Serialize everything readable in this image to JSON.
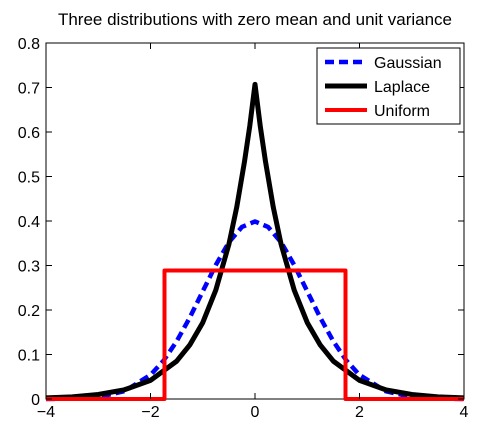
{
  "chart_data": {
    "type": "line",
    "title": "Three distributions with zero mean and unit variance",
    "xlabel": "",
    "ylabel": "",
    "xlim": [
      -4,
      4
    ],
    "ylim": [
      0,
      0.8
    ],
    "x_ticks": [
      "−4",
      "−2",
      "0",
      "2",
      "4"
    ],
    "y_ticks": [
      "0",
      "0.1",
      "0.2",
      "0.3",
      "0.4",
      "0.5",
      "0.6",
      "0.7",
      "0.8"
    ],
    "x_tick_values": [
      -4,
      -2,
      0,
      2,
      4
    ],
    "y_tick_values": [
      0,
      0.1,
      0.2,
      0.3,
      0.4,
      0.5,
      0.6,
      0.7,
      0.8
    ],
    "grid": false,
    "legend_position": "top-right",
    "series": [
      {
        "name": "Gaussian",
        "color": "#0000ff",
        "style": "dashed",
        "x": [
          -4,
          -3.5,
          -3,
          -2.5,
          -2,
          -1.75,
          -1.5,
          -1.25,
          -1,
          -0.75,
          -0.5,
          -0.25,
          0,
          0.25,
          0.5,
          0.75,
          1,
          1.25,
          1.5,
          1.75,
          2,
          2.5,
          3,
          3.5,
          4
        ],
        "y": [
          0.0001,
          0.0009,
          0.0044,
          0.0175,
          0.054,
          0.0863,
          0.1295,
          0.1826,
          0.242,
          0.3011,
          0.3521,
          0.3867,
          0.3989,
          0.3867,
          0.3521,
          0.3011,
          0.242,
          0.1826,
          0.1295,
          0.0863,
          0.054,
          0.0175,
          0.0044,
          0.0009,
          0.0001
        ]
      },
      {
        "name": "Laplace",
        "color": "#000000",
        "style": "solid",
        "x": [
          -4,
          -3.5,
          -3,
          -2.5,
          -2,
          -1.5,
          -1.25,
          -1,
          -0.75,
          -0.5,
          -0.35,
          -0.2,
          -0.1,
          0,
          0.1,
          0.2,
          0.35,
          0.5,
          0.75,
          1,
          1.25,
          1.5,
          2,
          2.5,
          3,
          3.5,
          4
        ],
        "y": [
          0.0025,
          0.0049,
          0.0101,
          0.0207,
          0.0418,
          0.085,
          0.1211,
          0.1717,
          0.2448,
          0.3475,
          0.4308,
          0.5343,
          0.6136,
          0.7071,
          0.6136,
          0.5343,
          0.4308,
          0.3475,
          0.2448,
          0.1717,
          0.1211,
          0.085,
          0.0418,
          0.0207,
          0.0101,
          0.0049,
          0.0025
        ]
      },
      {
        "name": "Uniform",
        "color": "#ff0000",
        "style": "solid",
        "x": [
          -4,
          -1.732,
          -1.732,
          1.732,
          1.732,
          4
        ],
        "y": [
          0,
          0,
          0.2887,
          0.2887,
          0,
          0
        ]
      }
    ]
  }
}
